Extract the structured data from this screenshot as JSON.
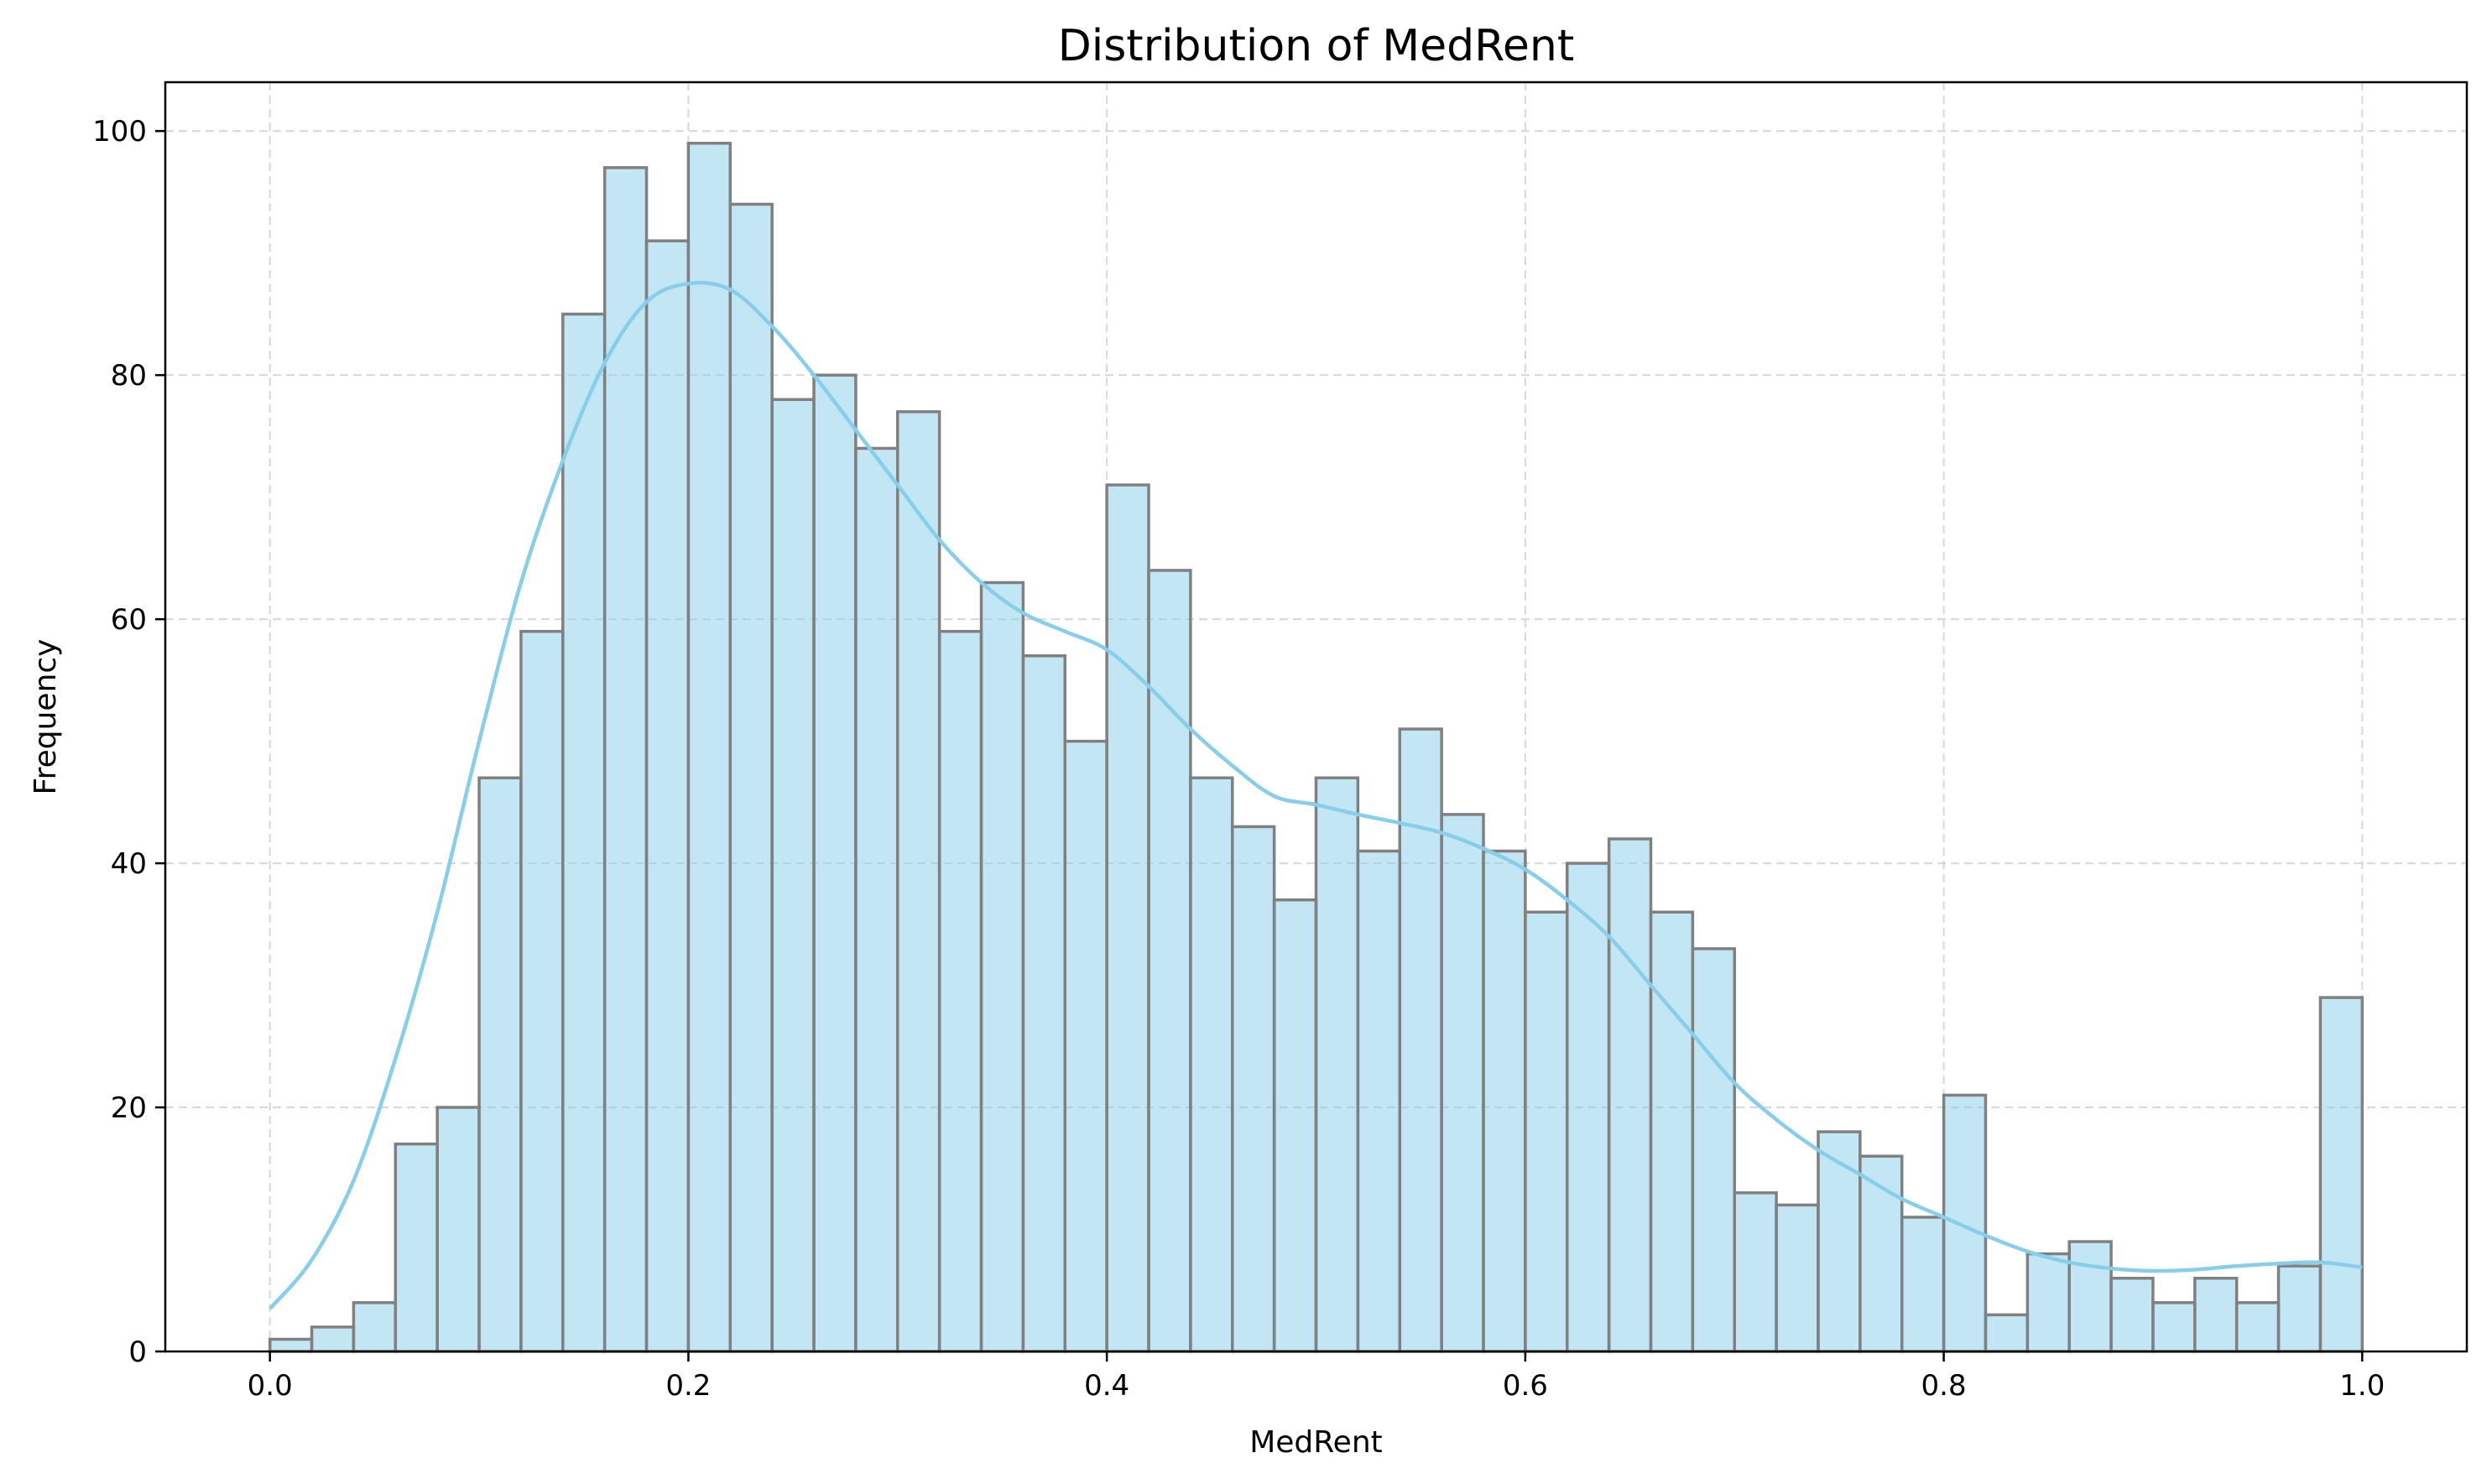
{
  "chart_data": {
    "type": "bar",
    "title": "Distribution of MedRent",
    "xlabel": "MedRent",
    "ylabel": "Frequency",
    "xlim": [
      -0.05,
      1.05
    ],
    "ylim": [
      0,
      104
    ],
    "xticks": [
      0.0,
      0.2,
      0.4,
      0.6,
      0.8,
      1.0
    ],
    "xtick_labels": [
      "0.0",
      "0.2",
      "0.4",
      "0.6",
      "0.8",
      "1.0"
    ],
    "yticks": [
      0,
      20,
      40,
      60,
      80,
      100
    ],
    "ytick_labels": [
      "0",
      "20",
      "40",
      "60",
      "80",
      "100"
    ],
    "grid": true,
    "bin_edges": [
      0.0,
      0.02,
      0.04,
      0.06,
      0.08,
      0.1,
      0.12,
      0.14,
      0.16,
      0.18,
      0.2,
      0.22,
      0.24,
      0.26,
      0.28,
      0.3,
      0.32,
      0.34,
      0.36,
      0.38,
      0.4,
      0.42,
      0.44,
      0.46,
      0.48,
      0.5,
      0.52,
      0.54,
      0.56,
      0.58,
      0.6,
      0.62,
      0.64,
      0.66,
      0.68,
      0.7,
      0.72,
      0.74,
      0.76,
      0.78,
      0.8,
      0.82,
      0.84,
      0.86,
      0.88,
      0.9,
      0.92,
      0.94,
      0.96,
      0.98,
      1.0
    ],
    "values": [
      1,
      2,
      4,
      17,
      20,
      47,
      59,
      85,
      97,
      91,
      99,
      94,
      78,
      80,
      74,
      77,
      59,
      63,
      57,
      50,
      71,
      64,
      47,
      43,
      37,
      47,
      41,
      51,
      44,
      41,
      36,
      40,
      42,
      36,
      33,
      13,
      12,
      18,
      16,
      11,
      21,
      3,
      8,
      9,
      6,
      4,
      6,
      4,
      7,
      29
    ],
    "bar_color": "#87CEEB",
    "edge_color": "#808080",
    "kde_color": "#87CEEB",
    "kde": {
      "x": [
        0.0,
        0.02,
        0.04,
        0.06,
        0.08,
        0.1,
        0.12,
        0.14,
        0.16,
        0.18,
        0.2,
        0.22,
        0.24,
        0.26,
        0.28,
        0.3,
        0.32,
        0.34,
        0.36,
        0.38,
        0.4,
        0.42,
        0.44,
        0.46,
        0.48,
        0.5,
        0.52,
        0.54,
        0.56,
        0.58,
        0.6,
        0.62,
        0.64,
        0.66,
        0.68,
        0.7,
        0.72,
        0.74,
        0.76,
        0.78,
        0.8,
        0.82,
        0.84,
        0.86,
        0.88,
        0.9,
        0.92,
        0.94,
        0.96,
        0.98,
        1.0
      ],
      "y": [
        3.5,
        7.5,
        14,
        24,
        36,
        50,
        63,
        73,
        81,
        86,
        87.5,
        87,
        84,
        80,
        75.5,
        71,
        66.5,
        63,
        60.5,
        59,
        57.5,
        54.5,
        51,
        48,
        45.5,
        44.8,
        44,
        43.3,
        42.5,
        41.2,
        39.5,
        37,
        34,
        30,
        26,
        22,
        19,
        16.5,
        14.5,
        12.5,
        11,
        9.5,
        8.2,
        7.3,
        6.8,
        6.6,
        6.7,
        7.0,
        7.2,
        7.3,
        6.9
      ]
    }
  }
}
